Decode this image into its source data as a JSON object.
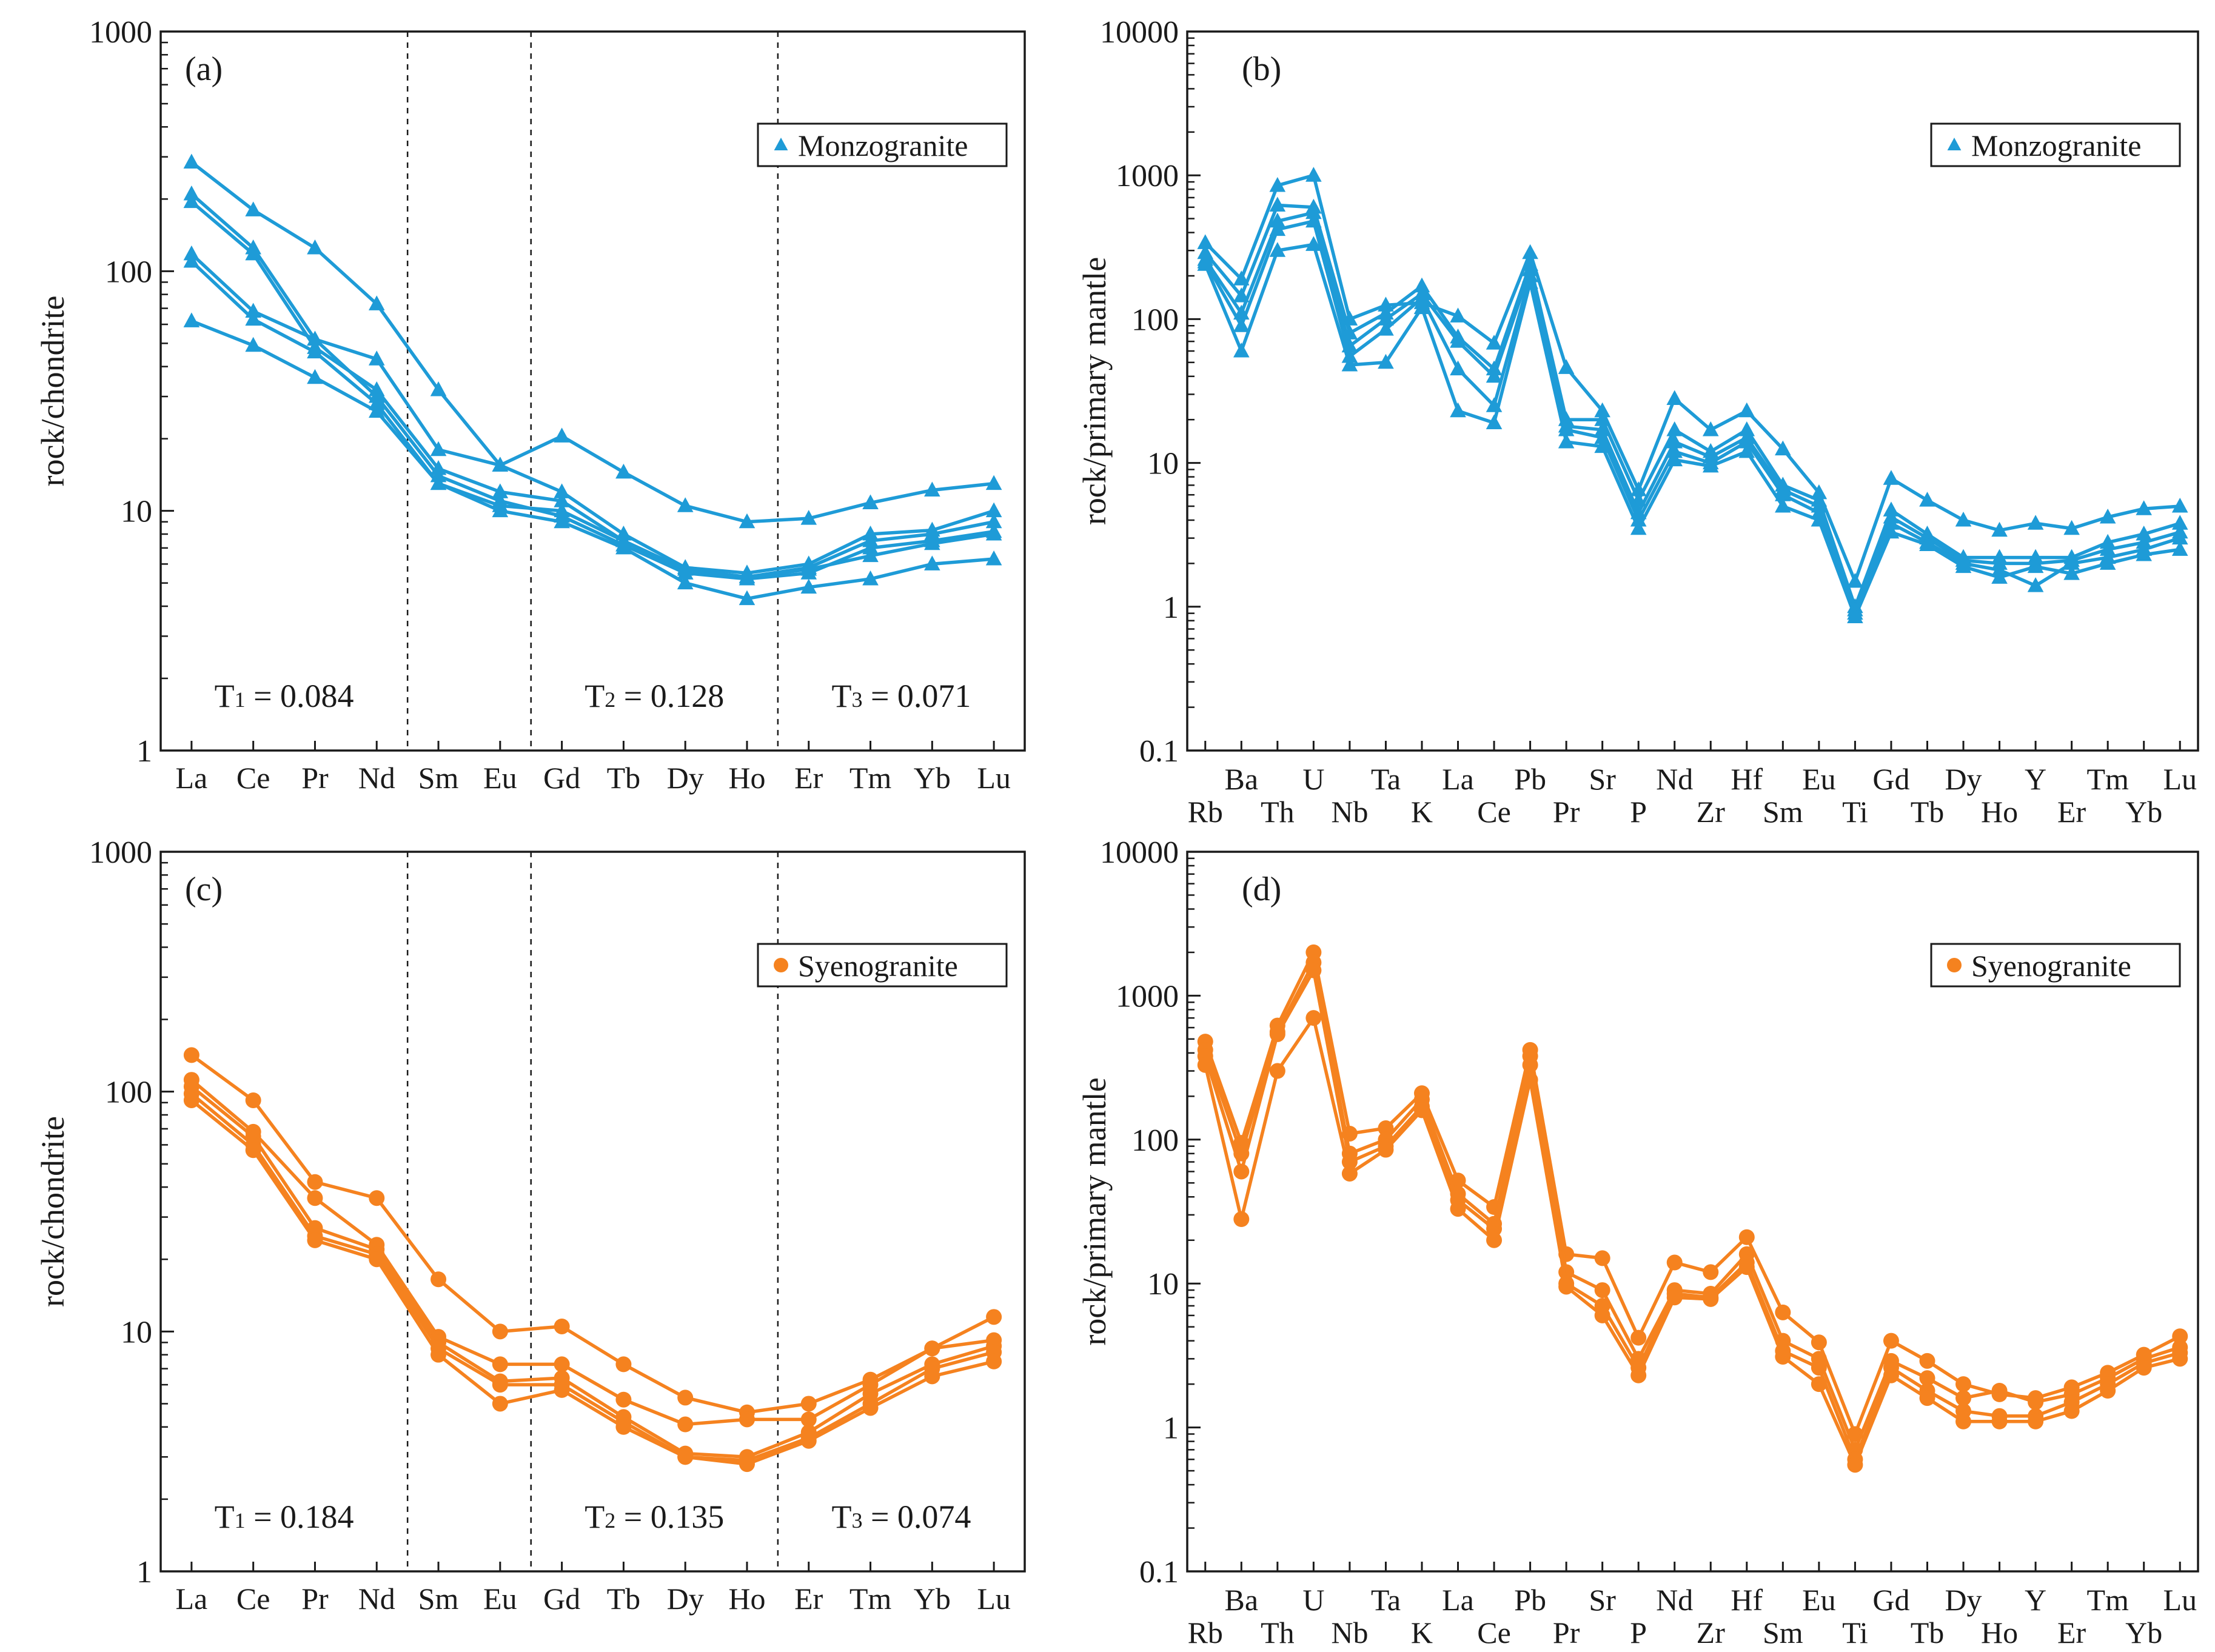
{
  "colors": {
    "monzogranite": "#1e9bd7",
    "syenogranite": "#f5821f",
    "axis": "#1a1a1a"
  },
  "chart_data": [
    {
      "id": "a",
      "type": "line",
      "panel_label": "(a)",
      "ylabel": "rock/chondrite",
      "yscale": "log",
      "ylim": [
        1,
        1000
      ],
      "y_ticks": [
        "1",
        "10",
        "100",
        "1000"
      ],
      "categories": [
        "La",
        "Ce",
        "Pr",
        "Nd",
        "Sm",
        "Eu",
        "Gd",
        "Tb",
        "Dy",
        "Ho",
        "Er",
        "Tm",
        "Yb",
        "Lu"
      ],
      "legend": {
        "label": "Monzogranite",
        "marker": "triangle",
        "position": "top-right"
      },
      "color": "#1e9bd7",
      "dividers_after": [
        3,
        5,
        9
      ],
      "annotations": [
        {
          "sym": "T",
          "sub": "1",
          "rest": " = 0.084",
          "at": 1.5
        },
        {
          "sym": "T",
          "sub": "2",
          "rest": " = 0.128",
          "at": 7.5
        },
        {
          "sym": "T",
          "sub": "3",
          "rest": " = 0.071",
          "at": 11.5
        }
      ],
      "series": [
        {
          "values": [
            285,
            180,
            125,
            73,
            32,
            15.5,
            20.5,
            14.5,
            10.5,
            9,
            9.3,
            10.8,
            12.2,
            13
          ]
        },
        {
          "values": [
            210,
            125,
            52,
            43,
            18,
            15.5,
            12,
            8,
            5.8,
            5.5,
            6,
            8,
            8.3,
            10
          ]
        },
        {
          "values": [
            195,
            118,
            48,
            32,
            15,
            12,
            11,
            7.5,
            5.5,
            5.3,
            5.8,
            7.5,
            8,
            9
          ]
        },
        {
          "values": [
            118,
            68,
            52,
            30,
            14,
            11,
            9.5,
            7.2,
            5.5,
            5.2,
            5.5,
            7,
            7.5,
            8.2
          ]
        },
        {
          "values": [
            110,
            63,
            46,
            28,
            13,
            10,
            9,
            7,
            5,
            4.3,
            4.8,
            5.2,
            6,
            6.3
          ]
        },
        {
          "values": [
            62,
            49,
            36,
            26,
            13,
            10.5,
            10,
            7.5,
            5.7,
            5.3,
            5.7,
            6.5,
            7.3,
            8
          ]
        }
      ]
    },
    {
      "id": "b",
      "type": "line",
      "panel_label": "(b)",
      "ylabel": "rock/primary  mantle",
      "yscale": "log",
      "ylim": [
        0.1,
        10000
      ],
      "y_ticks": [
        "0.1",
        "1",
        "10",
        "100",
        "1000",
        "10000"
      ],
      "categories": [
        "Rb",
        "Ba",
        "Th",
        "U",
        "Nb",
        "Ta",
        "K",
        "La",
        "Ce",
        "Pb",
        "Pr",
        "Sr",
        "P",
        "Nd",
        "Zr",
        "Hf",
        "Sm",
        "Eu",
        "Ti",
        "Gd",
        "Tb",
        "Dy",
        "Ho",
        "Y",
        "Er",
        "Tm",
        "Yb",
        "Lu"
      ],
      "legend": {
        "label": "Monzogranite",
        "marker": "triangle",
        "position": "top-right"
      },
      "color": "#1e9bd7",
      "series": [
        {
          "values": [
            340,
            190,
            850,
            1000,
            100,
            125,
            130,
            105,
            68,
            290,
            46,
            23,
            6.5,
            28,
            17,
            23,
            12.5,
            6.2,
            1.5,
            7.8,
            5.5,
            4,
            3.4,
            3.8,
            3.5,
            4.2,
            4.8,
            5
          ]
        },
        {
          "values": [
            290,
            145,
            620,
            600,
            80,
            110,
            170,
            75,
            45,
            240,
            20,
            20,
            5.5,
            17,
            12,
            17,
            7,
            5.5,
            1,
            4.7,
            3.2,
            2.2,
            2.2,
            2.2,
            2.2,
            2.8,
            3.2,
            3.8
          ]
        },
        {
          "values": [
            260,
            110,
            480,
            550,
            65,
            100,
            150,
            70,
            40,
            220,
            18,
            17,
            4.5,
            14,
            11,
            15,
            6.5,
            5,
            0.95,
            4.2,
            3,
            2.1,
            2,
            2,
            2.1,
            2.5,
            2.8,
            3.3
          ]
        },
        {
          "values": [
            250,
            90,
            420,
            480,
            55,
            85,
            140,
            45,
            25,
            200,
            17,
            15,
            4,
            12,
            10,
            14,
            6,
            4.5,
            0.9,
            3.8,
            2.8,
            2,
            1.8,
            1.4,
            2,
            2.2,
            2.5,
            3
          ]
        },
        {
          "values": [
            240,
            60,
            300,
            330,
            48,
            50,
            120,
            23,
            19,
            180,
            14,
            13,
            3.5,
            10.5,
            9.5,
            12,
            5,
            4,
            0.85,
            3.3,
            2.7,
            1.9,
            1.6,
            1.9,
            1.7,
            2,
            2.3,
            2.5
          ]
        }
      ]
    },
    {
      "id": "c",
      "type": "line",
      "panel_label": "(c)",
      "ylabel": "rock/chondrite",
      "yscale": "log",
      "ylim": [
        1,
        1000
      ],
      "y_ticks": [
        "1",
        "10",
        "100",
        "1000"
      ],
      "categories": [
        "La",
        "Ce",
        "Pr",
        "Nd",
        "Sm",
        "Eu",
        "Gd",
        "Tb",
        "Dy",
        "Ho",
        "Er",
        "Tm",
        "Yb",
        "Lu"
      ],
      "legend": {
        "label": "Syenogranite",
        "marker": "circle",
        "position": "top-right"
      },
      "color": "#f5821f",
      "dividers_after": [
        3,
        5,
        9
      ],
      "annotations": [
        {
          "sym": "T",
          "sub": "1",
          "rest": " = 0.184",
          "at": 1.5
        },
        {
          "sym": "T",
          "sub": "2",
          "rest": " = 0.135",
          "at": 7.5
        },
        {
          "sym": "T",
          "sub": "3",
          "rest": " = 0.074",
          "at": 11.5
        }
      ],
      "series": [
        {
          "values": [
            142,
            92,
            42,
            36,
            16.5,
            10,
            10.5,
            7.3,
            5.3,
            4.6,
            5,
            6.3,
            8.5,
            11.5
          ]
        },
        {
          "values": [
            112,
            68,
            36,
            23,
            9.5,
            7.3,
            7.3,
            5.2,
            4.1,
            4.3,
            4.3,
            6,
            8.5,
            9.2
          ]
        },
        {
          "values": [
            105,
            65,
            27,
            22,
            9,
            6.2,
            6.4,
            4.4,
            3.1,
            3,
            3.8,
            5.5,
            7.3,
            8.7
          ]
        },
        {
          "values": [
            98,
            60,
            25,
            21,
            8.5,
            6,
            6,
            4.2,
            3,
            2.9,
            3.6,
            5,
            7,
            8.2
          ]
        },
        {
          "values": [
            92,
            57,
            24,
            20,
            8,
            5,
            5.7,
            4,
            3,
            2.8,
            3.5,
            4.8,
            6.5,
            7.5
          ]
        }
      ]
    },
    {
      "id": "d",
      "type": "line",
      "panel_label": "(d)",
      "ylabel": "rock/primary  mantle",
      "yscale": "log",
      "ylim": [
        0.1,
        10000
      ],
      "y_ticks": [
        "0.1",
        "1",
        "10",
        "100",
        "1000",
        "10000"
      ],
      "categories": [
        "Rb",
        "Ba",
        "Th",
        "U",
        "Nb",
        "Ta",
        "K",
        "La",
        "Ce",
        "Pb",
        "Pr",
        "Sr",
        "P",
        "Nd",
        "Zr",
        "Hf",
        "Sm",
        "Eu",
        "Ti",
        "Gd",
        "Tb",
        "Dy",
        "Ho",
        "Y",
        "Er",
        "Tm",
        "Yb",
        "Lu"
      ],
      "legend": {
        "label": "Syenogranite",
        "marker": "circle",
        "position": "top-right"
      },
      "color": "#f5821f",
      "series": [
        {
          "values": [
            480,
            95,
            620,
            2000,
            110,
            120,
            210,
            52,
            34,
            420,
            16,
            15,
            4.2,
            14,
            12,
            21,
            6.3,
            3.9,
            0.9,
            4,
            2.9,
            2,
            1.7,
            1.6,
            1.9,
            2.4,
            3.2,
            4.3
          ]
        },
        {
          "values": [
            420,
            80,
            560,
            1700,
            80,
            100,
            190,
            42,
            26,
            380,
            12,
            9,
            3,
            9,
            8.5,
            16,
            4,
            3,
            0.7,
            2.9,
            2.2,
            1.6,
            1.8,
            1.5,
            1.7,
            2.2,
            3,
            3.6
          ]
        },
        {
          "values": [
            380,
            60,
            540,
            1500,
            70,
            90,
            170,
            38,
            24,
            330,
            10,
            7,
            2.6,
            8.5,
            8,
            14,
            3.4,
            2.6,
            0.6,
            2.6,
            1.8,
            1.3,
            1.2,
            1.2,
            1.5,
            2,
            2.8,
            3.3
          ]
        },
        {
          "values": [
            330,
            28,
            300,
            700,
            58,
            85,
            160,
            33,
            20,
            260,
            9.5,
            6,
            2.3,
            8,
            7.8,
            13,
            3.1,
            2,
            0.55,
            2.3,
            1.6,
            1.1,
            1.1,
            1.1,
            1.3,
            1.8,
            2.6,
            3
          ]
        }
      ]
    }
  ]
}
